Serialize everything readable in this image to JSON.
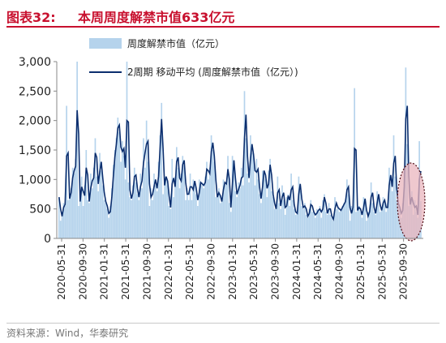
{
  "header": {
    "figure_label": "图表32:",
    "title": "本周周度解禁市值633亿元"
  },
  "footer": {
    "source": "资料来源：Wind，华泰研究"
  },
  "colors": {
    "bar": "#b5d3ec",
    "line": "#0b2e6e",
    "highlight_fill": "#eab5bd",
    "highlight_stroke": "#4a0a12",
    "title": "#c8102e"
  },
  "chart_data": {
    "type": "bar",
    "x_start": "2020-05-31",
    "x_end": "2025-11-30",
    "ylim": [
      0,
      3000
    ],
    "yticks": [
      0,
      500,
      1000,
      1500,
      2000,
      2500,
      3000
    ],
    "ytick_labels": [
      "0",
      "500",
      "1,000",
      "1,500",
      "2,000",
      "2,500",
      "3,000"
    ],
    "xtick_labels": [
      "2020-05-31",
      "2020-09-30",
      "2021-01-31",
      "2021-05-31",
      "2021-09-30",
      "2022-01-31",
      "2022-05-31",
      "2022-09-30",
      "2023-01-31",
      "2023-05-31",
      "2023-09-30",
      "2024-01-31",
      "2024-05-31",
      "2024-09-30",
      "2025-01-31",
      "2025-05-31",
      "2025-09-30"
    ],
    "legend_location": "top-left",
    "grid": false,
    "series": [
      {
        "name": "周度解禁市值（亿元）",
        "type": "bar",
        "values": [
          700,
          300,
          450,
          600,
          550,
          2250,
          650,
          700,
          850,
          1200,
          1100,
          1350,
          3000,
          550,
          700,
          1050,
          550,
          900,
          1500,
          650,
          600,
          1100,
          850,
          1200,
          1700,
          1050,
          800,
          1450,
          1150,
          900,
          650,
          600,
          500,
          350,
          550,
          850,
          1250,
          1500,
          1700,
          2050,
          1800,
          1300,
          1650,
          1400,
          1000,
          3000,
          950,
          700,
          650,
          900,
          1200,
          950,
          750,
          650,
          1100,
          850,
          1700,
          1200,
          2000,
          1300,
          550,
          850,
          650,
          1100,
          900,
          800,
          1300,
          1750,
          2300,
          750,
          1050,
          1050,
          900,
          550,
          500,
          1350,
          700,
          1050,
          1550,
          1200,
          850,
          1100,
          1400,
          1250,
          650,
          850,
          650,
          1100,
          650,
          1000,
          950,
          750,
          550,
          1000,
          900,
          950,
          850,
          1050,
          1300,
          1000,
          1200,
          1750,
          1500,
          1300,
          700,
          700,
          850,
          600,
          650,
          1000,
          900,
          950,
          1400,
          600,
          450,
          1400,
          1250,
          800,
          700,
          950,
          850,
          1200,
          900,
          2500,
          1700,
          1100,
          950,
          1750,
          1450,
          1400,
          900,
          1350,
          1000,
          750,
          600,
          1150,
          1150,
          1000,
          700,
          1150,
          1350,
          800,
          700,
          500,
          500,
          1050,
          600,
          500,
          900,
          650,
          400,
          700,
          750,
          550,
          1100,
          650,
          500,
          400,
          450,
          1050,
          800,
          550,
          500,
          600,
          400,
          350,
          500,
          650,
          450,
          450,
          350,
          500,
          450,
          550,
          350,
          650,
          750,
          450,
          400,
          600,
          400,
          350,
          300,
          700,
          500,
          550,
          450,
          500,
          550,
          600,
          650,
          1000,
          750,
          300,
          550,
          500,
          2550,
          450,
          500,
          550,
          450,
          350,
          700,
          650,
          300,
          450,
          450,
          950,
          600,
          450,
          400,
          800,
          700,
          450,
          500,
          700,
          600,
          450,
          600,
          1200,
          950,
          800,
          1750,
          1050,
          650,
          550,
          500,
          350,
          600,
          1150,
          2900,
          1600,
          550,
          600,
          800,
          400,
          650,
          450,
          350,
          1650,
          633
        ]
      },
      {
        "name": "2周期 移动平均 (周度解禁市值（亿元）)",
        "type": "line",
        "values": [
          700,
          500,
          375,
          525,
          575,
          1400,
          1450,
          675,
          775,
          1025,
          1150,
          1225,
          2175,
          1775,
          625,
          875,
          800,
          725,
          1200,
          1075,
          625,
          850,
          975,
          1025,
          1450,
          1375,
          925,
          1125,
          1300,
          1025,
          775,
          625,
          550,
          425,
          450,
          700,
          1050,
          1375,
          1600,
          1875,
          1925,
          1550,
          1475,
          1525,
          1200,
          2000,
          1975,
          825,
          675,
          775,
          1050,
          1075,
          850,
          700,
          875,
          975,
          1275,
          1450,
          1600,
          1650,
          925,
          700,
          750,
          875,
          1000,
          850,
          1050,
          1525,
          2025,
          1525,
          900,
          1050,
          975,
          725,
          525,
          925,
          1025,
          875,
          1300,
          1375,
          1025,
          975,
          1250,
          1325,
          950,
          750,
          750,
          875,
          875,
          825,
          975,
          850,
          650,
          775,
          950,
          925,
          900,
          950,
          1175,
          1150,
          1100,
          1475,
          1625,
          1400,
          1000,
          700,
          775,
          725,
          625,
          825,
          950,
          925,
          1175,
          1000,
          525,
          925,
          1325,
          1025,
          750,
          825,
          900,
          1025,
          1050,
          1700,
          2100,
          1400,
          1025,
          1350,
          1600,
          1425,
          1150,
          1125,
          1175,
          875,
          675,
          875,
          1150,
          1075,
          850,
          925,
          1250,
          1075,
          750,
          600,
          500,
          775,
          825,
          550,
          700,
          775,
          525,
          550,
          725,
          650,
          825,
          875,
          575,
          450,
          425,
          750,
          925,
          675,
          525,
          550,
          500,
          375,
          425,
          575,
          550,
          450,
          400,
          425,
          475,
          500,
          450,
          500,
          700,
          600,
          425,
          500,
          500,
          375,
          325,
          500,
          600,
          525,
          500,
          475,
          525,
          575,
          625,
          825,
          875,
          525,
          425,
          525,
          1525,
          1500,
          475,
          525,
          500,
          400,
          525,
          675,
          475,
          375,
          450,
          700,
          775,
          525,
          425,
          600,
          750,
          575,
          475,
          600,
          650,
          525,
          525,
          900,
          1075,
          875,
          1275,
          1400,
          850,
          600,
          525,
          425,
          475,
          875,
          2025,
          2250,
          1075,
          575,
          700,
          600,
          525,
          550,
          400,
          1000,
          1142
        ]
      }
    ]
  }
}
